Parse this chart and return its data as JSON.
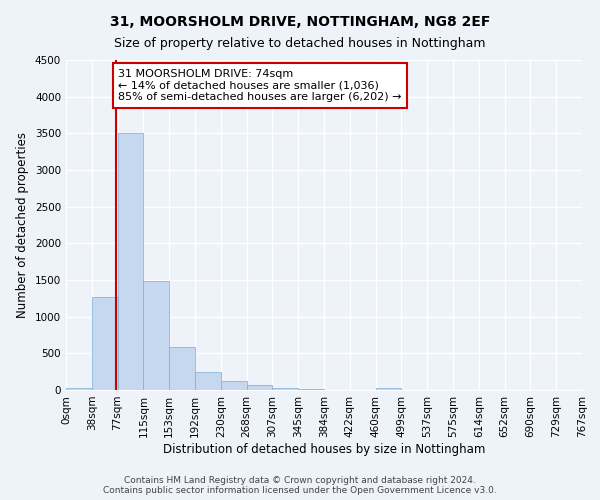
{
  "title": "31, MOORSHOLM DRIVE, NOTTINGHAM, NG8 2EF",
  "subtitle": "Size of property relative to detached houses in Nottingham",
  "xlabel": "Distribution of detached houses by size in Nottingham",
  "ylabel": "Number of detached properties",
  "bin_labels": [
    "0sqm",
    "38sqm",
    "77sqm",
    "115sqm",
    "153sqm",
    "192sqm",
    "230sqm",
    "268sqm",
    "307sqm",
    "345sqm",
    "384sqm",
    "422sqm",
    "460sqm",
    "499sqm",
    "537sqm",
    "575sqm",
    "614sqm",
    "652sqm",
    "690sqm",
    "729sqm",
    "767sqm"
  ],
  "bar_values": [
    30,
    1270,
    3500,
    1480,
    580,
    240,
    120,
    70,
    25,
    10,
    5,
    2,
    25,
    2,
    0,
    0,
    0,
    0,
    0,
    0
  ],
  "bar_color": "#c5d8f0",
  "bar_edge_color": "#7bafd4",
  "vline_color": "#cc0000",
  "annotation_text": "31 MOORSHOLM DRIVE: 74sqm\n← 14% of detached houses are smaller (1,036)\n85% of semi-detached houses are larger (6,202) →",
  "annotation_box_color": "#ffffff",
  "annotation_box_edge": "#cc0000",
  "ylim": [
    0,
    4500
  ],
  "yticks": [
    0,
    500,
    1000,
    1500,
    2000,
    2500,
    3000,
    3500,
    4000,
    4500
  ],
  "footer_line1": "Contains HM Land Registry data © Crown copyright and database right 2024.",
  "footer_line2": "Contains public sector information licensed under the Open Government Licence v3.0.",
  "bg_color": "#eef2f9",
  "grid_color": "#ffffff",
  "title_fontsize": 10,
  "subtitle_fontsize": 9,
  "axis_label_fontsize": 8.5,
  "tick_fontsize": 7.5,
  "footer_fontsize": 6.5,
  "annotation_fontsize": 8
}
